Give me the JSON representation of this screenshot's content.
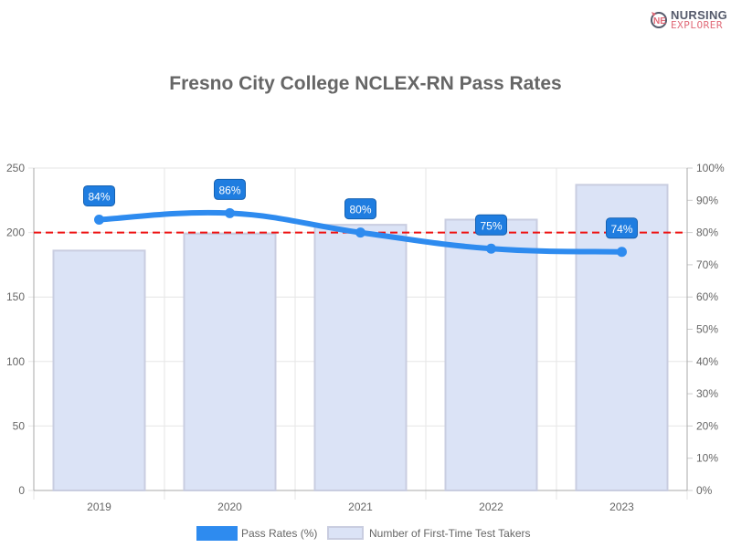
{
  "logo": {
    "line1": "NURSING",
    "line2": "EXPLORER"
  },
  "chart_data": {
    "type": "bar+line",
    "title": "Fresno City College NCLEX-RN Pass Rates",
    "categories": [
      "2019",
      "2020",
      "2021",
      "2022",
      "2023"
    ],
    "series": [
      {
        "name": "Pass Rates (%)",
        "type": "line",
        "axis": "right",
        "values": [
          84,
          86,
          80,
          75,
          74
        ],
        "labels": [
          "84%",
          "86%",
          "80%",
          "75%",
          "74%"
        ],
        "color": "#2e8bef"
      },
      {
        "name": "Number of First-Time Test Takers",
        "type": "bar",
        "axis": "left",
        "values": [
          186,
          199,
          206,
          210,
          237
        ],
        "color": "#dbe3f6"
      }
    ],
    "left_axis": {
      "ylim": [
        0,
        250
      ],
      "ticks": [
        "0",
        "50",
        "100",
        "150",
        "200",
        "250"
      ]
    },
    "right_axis": {
      "ylim": [
        0,
        100
      ],
      "ticks": [
        "0%",
        "10%",
        "20%",
        "30%",
        "40%",
        "50%",
        "60%",
        "70%",
        "80%",
        "90%",
        "100%"
      ]
    },
    "reference_line": {
      "value": 80,
      "axis": "right",
      "color": "#ee1111",
      "style": "dashed"
    },
    "legend": "bottom",
    "grid": true
  }
}
